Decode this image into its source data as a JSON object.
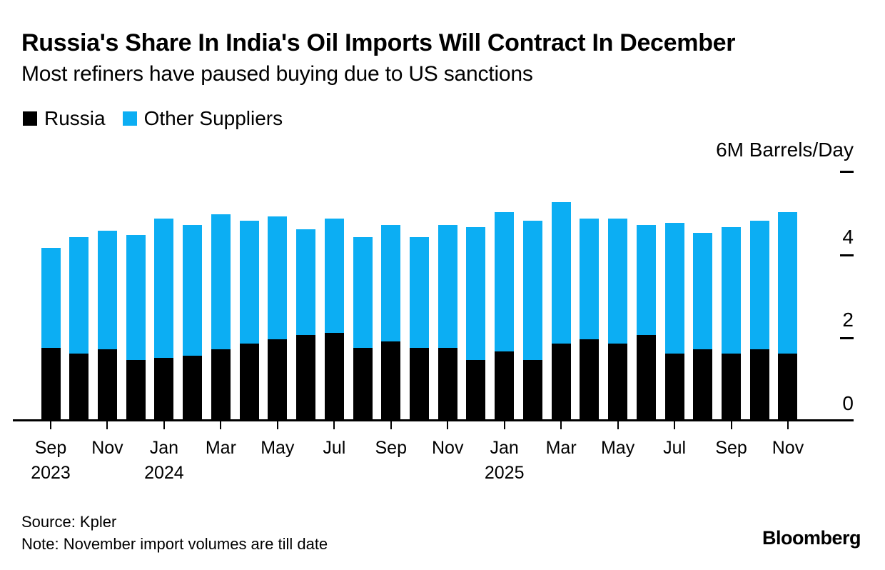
{
  "header": {
    "title": "Russia's Share In India's Oil Imports Will Contract In December",
    "subtitle": "Most refiners have paused buying due to US sanctions"
  },
  "legend": {
    "items": [
      {
        "label": "Russia",
        "color": "#000000"
      },
      {
        "label": "Other Suppliers",
        "color": "#0caef3"
      }
    ]
  },
  "axis": {
    "unit_label": "6M Barrels/Day",
    "y_dash_values": [
      6,
      4,
      2
    ],
    "y_number_labels": [
      {
        "value": 4,
        "label": "4"
      },
      {
        "value": 2,
        "label": "2"
      },
      {
        "value": 0,
        "label": "0"
      }
    ],
    "x_ticks": [
      {
        "bar": 0,
        "month": "Sep",
        "year": "2023"
      },
      {
        "bar": 2,
        "month": "Nov"
      },
      {
        "bar": 4,
        "month": "Jan",
        "year": "2024"
      },
      {
        "bar": 6,
        "month": "Mar"
      },
      {
        "bar": 8,
        "month": "May"
      },
      {
        "bar": 10,
        "month": "Jul"
      },
      {
        "bar": 12,
        "month": "Sep"
      },
      {
        "bar": 14,
        "month": "Nov"
      },
      {
        "bar": 16,
        "month": "Jan",
        "year": "2025"
      },
      {
        "bar": 18,
        "month": "Mar"
      },
      {
        "bar": 20,
        "month": "May"
      },
      {
        "bar": 22,
        "month": "Jul"
      },
      {
        "bar": 24,
        "month": "Sep"
      },
      {
        "bar": 26,
        "month": "Nov"
      }
    ]
  },
  "chart_data": {
    "type": "bar",
    "stacked": true,
    "title": "Russia's Share In India's Oil Imports Will Contract In December",
    "subtitle": "Most refiners have paused buying due to US sanctions",
    "ylabel": "6M Barrels/Day",
    "unit": "M Barrels/Day",
    "ylim": [
      0,
      6
    ],
    "y_ticks": [
      0,
      2,
      4,
      6
    ],
    "grid": false,
    "legend_position": "top-left",
    "categories": [
      "Sep 2023",
      "Oct 2023",
      "Nov 2023",
      "Dec 2023",
      "Jan 2024",
      "Feb 2024",
      "Mar 2024",
      "Apr 2024",
      "May 2024",
      "Jun 2024",
      "Jul 2024",
      "Aug 2024",
      "Sep 2024",
      "Oct 2024",
      "Nov 2024",
      "Dec 2024",
      "Jan 2025",
      "Feb 2025",
      "Mar 2025",
      "Apr 2025",
      "May 2025",
      "Jun 2025",
      "Jul 2025",
      "Aug 2025",
      "Sep 2025",
      "Oct 2025",
      "Nov 2025"
    ],
    "series": [
      {
        "name": "Russia",
        "color": "#000000",
        "values": [
          1.75,
          1.6,
          1.7,
          1.45,
          1.5,
          1.55,
          1.7,
          1.85,
          1.95,
          2.05,
          2.1,
          1.75,
          1.9,
          1.75,
          1.75,
          1.45,
          1.65,
          1.45,
          1.85,
          1.95,
          1.85,
          2.05,
          1.6,
          1.7,
          1.6,
          1.7,
          1.6
        ]
      },
      {
        "name": "Other Suppliers",
        "color": "#0caef3",
        "values": [
          2.4,
          2.8,
          2.85,
          3.0,
          3.35,
          3.15,
          3.25,
          2.95,
          2.95,
          2.55,
          2.75,
          2.65,
          2.8,
          2.65,
          2.95,
          3.2,
          3.35,
          3.35,
          3.4,
          2.9,
          3.0,
          2.65,
          3.15,
          2.8,
          3.05,
          3.1,
          3.4
        ]
      }
    ]
  },
  "footer": {
    "source": "Source: Kpler",
    "note": "Note: November import volumes are till date",
    "brand": "Bloomberg"
  }
}
